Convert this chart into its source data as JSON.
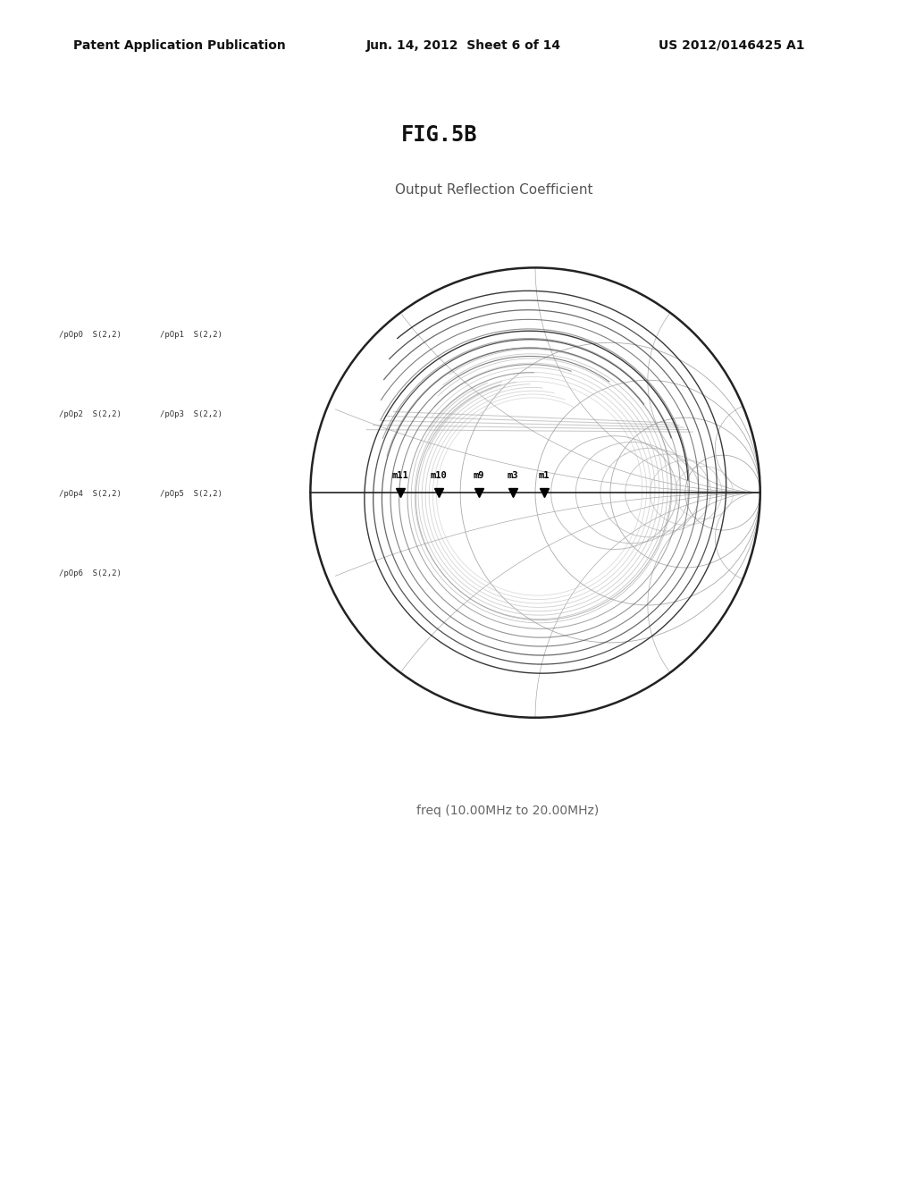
{
  "header_left": "Patent Application Publication",
  "header_center": "Jun. 14, 2012  Sheet 6 of 14",
  "header_right": "US 2012/0146425 A1",
  "figure_title": "FIG.5B",
  "chart_title": "Output Reflection Coefficient",
  "freq_label": "freq (10.00MHz to 20.00MHz)",
  "markers": [
    "m11",
    "m10",
    "m9",
    "m3",
    "m1"
  ],
  "marker_x_positions": [
    -0.6,
    -0.43,
    -0.25,
    -0.1,
    0.04
  ],
  "legend_col1": [
    "/pOp0  S(2,2)",
    "/pOp2  S(2,2)",
    "/pOp4  S(2,2)",
    "/pOp6  S(2,2)"
  ],
  "legend_col2": [
    "/pOp1  S(2,2)",
    "/pOp3  S(2,2)",
    "/pOp5  S(2,2)"
  ],
  "background_color": "#ffffff",
  "text_color": "#333333",
  "dark_color": "#222222",
  "gray_color": "#aaaaaa",
  "mid_gray": "#777777"
}
